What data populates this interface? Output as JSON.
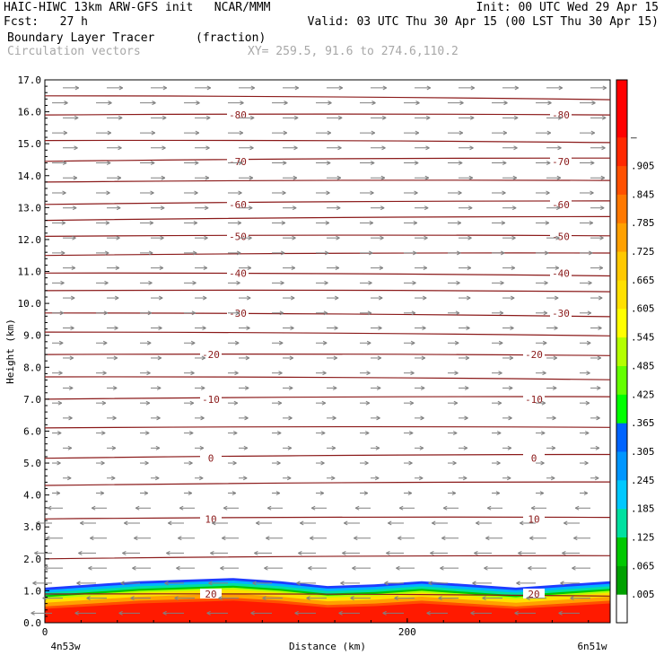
{
  "header": {
    "line1_left": "HAIC-HIWC 13km ARW-GFS init   NCAR/MMM",
    "line1_right": "Init: 00 UTC Wed 29 Apr 15",
    "line2_left": "Fcst:   27 h",
    "line2_right": "Valid: 03 UTC Thu 30 Apr 15 (00 LST Thu 30 Apr 15)",
    "line3_left": "Boundary Layer Tracer",
    "line3_units": "(fraction)",
    "line4_left": "Circulation vectors",
    "line4_xy": "XY= 259.5, 91.6 to 274.6,110.2"
  },
  "colors": {
    "contour": "#8b1a1a",
    "vector": "#808080",
    "colorbar": [
      "#ffffff",
      "#00a000",
      "#00c800",
      "#00e0a0",
      "#00c8ff",
      "#0096ff",
      "#0064ff",
      "#00ff00",
      "#64ff00",
      "#b4ff00",
      "#ffff00",
      "#ffe000",
      "#ffc800",
      "#ffa000",
      "#ff7800",
      "#ff5000",
      "#ff2800",
      "#ff0000",
      "#ff0000"
    ]
  },
  "chart_data": {
    "type": "heatmap",
    "title": "Boundary Layer Tracer",
    "units": "(fraction)",
    "xlabel": "Distance (km)",
    "ylabel": "Height (km)",
    "xlim": [
      0,
      312
    ],
    "ylim": [
      0.0,
      17.0
    ],
    "x_ticks": [
      "0",
      "200"
    ],
    "x_end_labels": [
      "4n53w",
      "6n51w"
    ],
    "y_ticks": [
      "0.0",
      "1.0",
      "2.0",
      "3.0",
      "4.0",
      "5.0",
      "6.0",
      "7.0",
      "8.0",
      "9.0",
      "10.0",
      "11.0",
      "12.0",
      "13.0",
      "14.0",
      "15.0",
      "16.0",
      "17.0"
    ],
    "colorbar_labels": [
      ".005",
      ".065",
      ".125",
      ".185",
      ".245",
      ".305",
      ".365",
      ".425",
      ".485",
      ".545",
      ".605",
      ".665",
      ".725",
      ".785",
      ".845",
      ".905",
      "–"
    ],
    "isotherms": [
      {
        "label": "-80",
        "height_km": 15.9
      },
      {
        "label": "-70",
        "height_km": 14.45
      },
      {
        "label": "-60",
        "height_km": 13.1
      },
      {
        "label": "-50",
        "height_km": 12.1
      },
      {
        "label": "-40",
        "height_km": 10.95
      },
      {
        "label": "-30",
        "height_km": 9.7
      },
      {
        "label": "-20",
        "height_km": 8.4
      },
      {
        "label": "-10",
        "height_km": 7.0
      },
      {
        "label": "0",
        "height_km": 5.15
      },
      {
        "label": "10",
        "height_km": 3.25
      },
      {
        "label": "20",
        "height_km": 0.9
      }
    ],
    "extra_contours_km": [
      16.5,
      15.1,
      13.8,
      12.6,
      11.5,
      10.4,
      9.1,
      7.7,
      6.1,
      4.3,
      2.0
    ],
    "boundary_layer_top_km": [
      1.1,
      1.2,
      1.3,
      1.35,
      1.4,
      1.3,
      1.15,
      1.2,
      1.3,
      1.2,
      1.1,
      1.2,
      1.3
    ]
  }
}
